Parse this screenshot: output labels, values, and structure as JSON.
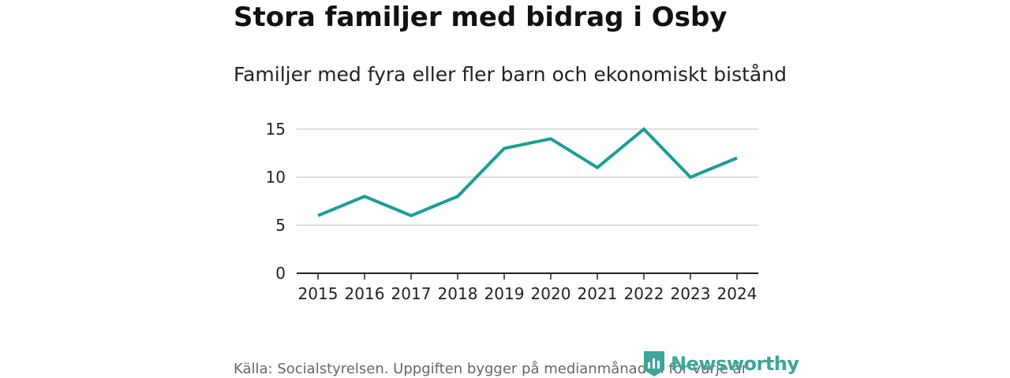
{
  "chart_data": {
    "type": "line",
    "title": "Stora familjer med bidrag i Osby",
    "subtitle": "Familjer med fyra eller fler barn och ekonomiskt bistånd",
    "xlabel": "",
    "ylabel": "",
    "categories": [
      "2015",
      "2016",
      "2017",
      "2018",
      "2019",
      "2020",
      "2021",
      "2022",
      "2023",
      "2024"
    ],
    "series": [
      {
        "name": "Familjer",
        "values": [
          6,
          8,
          6,
          8,
          13,
          14,
          11,
          15,
          10,
          12
        ]
      }
    ],
    "yticks": [
      0,
      5,
      10,
      15
    ],
    "ylim": [
      0,
      15
    ],
    "grid": true,
    "legend": "none",
    "line_color": "#1a9e96"
  },
  "footer": {
    "source": "Källa: Socialstyrelsen. Uppgiften bygger på medianmånaden för varje år"
  },
  "logo": {
    "text": "Newsworthy",
    "color": "#3aa79a"
  }
}
